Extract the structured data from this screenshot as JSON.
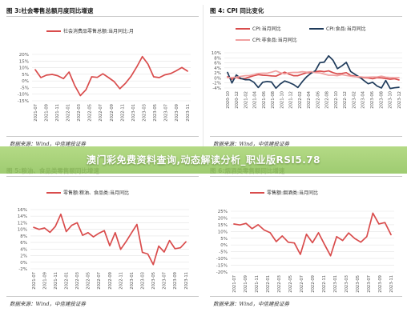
{
  "banner": {
    "text": "澳门彩免费资料查询,动态解读分析_职业版RSI5.78"
  },
  "colors": {
    "red": "#d94c4c",
    "navy": "#1f3b5b",
    "pink": "#f0a0a0",
    "grid": "#e4e4e4",
    "banner": "#9cc969"
  },
  "panels": [
    {
      "title": "图 3:社会零售总额月度同比增速",
      "source": "数据来源：Wind，中信建投证券"
    },
    {
      "title": "图 4: CPI 同比变化",
      "source": "数据来源：Wind，中信建投证券"
    },
    {
      "title": "图 5:粮油、食品类零售额同比增速",
      "source": "数据来源：Wind，中信建投证券"
    },
    {
      "title": "图 6:烟酒类零售额同比增速",
      "source": "数据来源：Wind，中信建投证券"
    }
  ],
  "chart_data": [
    {
      "type": "line",
      "ylim": [
        -15,
        20
      ],
      "yticks": [
        "20%",
        "15%",
        "10%",
        "5%",
        "0%",
        "-5%",
        "-10%",
        "-15%"
      ],
      "xticks": [
        "2021-07",
        "2021-09",
        "2021-11",
        "2022-01",
        "2022-03",
        "2022-05",
        "2022-07",
        "2022-09",
        "2022-11",
        "2023-01",
        "2023-03",
        "2023-05",
        "2023-07",
        "2023-09",
        "2023-11"
      ],
      "series": [
        {
          "name": "社会消费品零售总额:当月同比:月",
          "color": "#d94c4c",
          "values": [
            8.5,
            2.5,
            4.4,
            4.9,
            3.9,
            1.7,
            6.7,
            -3.5,
            -11.1,
            -6.7,
            3.1,
            2.7,
            5.4,
            2.5,
            -0.5,
            -5.9,
            -1.8,
            3.5,
            10.6,
            18.4,
            12.7,
            3.1,
            2.5,
            4.6,
            5.5,
            7.6,
            10.1,
            7.4
          ]
        }
      ]
    },
    {
      "type": "line",
      "ylim": [
        -4,
        10
      ],
      "yticks": [
        "10%",
        "8%",
        "6%",
        "4%",
        "2%",
        "0%",
        "-2%",
        "-4%"
      ],
      "xticks": [
        "2020-10",
        "2020-12",
        "2021-02",
        "2021-04",
        "2021-06",
        "2021-08",
        "2021-10",
        "2021-12",
        "2022-02",
        "2022-04",
        "2022-06",
        "2022-08",
        "2022-10",
        "2022-12",
        "2023-02",
        "2023-04",
        "2023-06",
        "2023-08",
        "2023-10",
        "2023-12"
      ],
      "series": [
        {
          "name": "CPI:当月同比",
          "color": "#d94c4c",
          "values": [
            0.5,
            -0.5,
            0.2,
            -0.3,
            -0.2,
            0.4,
            0.9,
            1.3,
            1.1,
            1.0,
            0.8,
            0.7,
            1.5,
            2.3,
            1.5,
            0.9,
            0.9,
            1.5,
            2.1,
            2.1,
            2.5,
            2.7,
            2.5,
            2.8,
            2.1,
            1.6,
            1.8,
            2.1,
            1.0,
            0.7,
            0.2,
            0.1,
            0.0,
            -0.3,
            0.1,
            0.0,
            -0.2,
            -0.5,
            -0.3,
            -0.8
          ]
        },
        {
          "name": "CPI:食品:当月同比",
          "color": "#1f3b5b",
          "values": [
            2.2,
            -2.0,
            1.2,
            -0.2,
            -0.7,
            -0.7,
            -1.7,
            -3.8,
            -1.7,
            -1.4,
            -1.6,
            -4.1,
            -2.4,
            -1.2,
            -1.8,
            -2.6,
            -3.8,
            -1.5,
            0.5,
            1.9,
            2.9,
            6.1,
            6.3,
            8.8,
            7.0,
            3.7,
            4.8,
            6.2,
            2.6,
            1.4,
            0.4,
            -1.0,
            -2.3,
            -1.7,
            -3.2,
            -4.0,
            -1.0,
            -4.2,
            -3.9,
            -3.7
          ]
        },
        {
          "name": "CPI:非食品:当月同比",
          "color": "#f0a0a0",
          "values": [
            0.1,
            0.2,
            0.3,
            0.6,
            0.9,
            1.0,
            1.3,
            1.8,
            1.9,
            1.9,
            2.3,
            2.8,
            2.1,
            1.6,
            2.1,
            2.2,
            2.2,
            2.5,
            2.3,
            2.5,
            2.1,
            2.0,
            1.5,
            1.1,
            1.1,
            0.9,
            1.3,
            1.0,
            0.7,
            0.5,
            0.5,
            0.3,
            0.3,
            0.4,
            0.4,
            0.7,
            0.3,
            0.2,
            0.1,
            0.1
          ]
        }
      ]
    },
    {
      "type": "line",
      "ylim": [
        -2,
        16
      ],
      "yticks": [
        "16%",
        "14%",
        "12%",
        "10%",
        "8%",
        "6%",
        "4%",
        "2%",
        "0%",
        "-2%"
      ],
      "xticks": [
        "2021-07",
        "2021-09",
        "2021-11",
        "2022-01",
        "2022-03",
        "2022-05",
        "2022-07",
        "2022-09",
        "2022-11",
        "2023-01",
        "2023-03",
        "2023-05",
        "2023-07",
        "2023-09",
        "2023-11"
      ],
      "series": [
        {
          "name": "零售额:粮油、食品类:当月同比",
          "color": "#d94c4c",
          "values": [
            10.6,
            10.0,
            10.4,
            9.1,
            10.9,
            14.6,
            9.3,
            11.2,
            12.0,
            8.2,
            9.0,
            7.7,
            8.8,
            9.6,
            5.0,
            9.0,
            3.9,
            6.3,
            8.9,
            11.5,
            3.0,
            2.5,
            -0.7,
            4.9,
            3.1,
            6.6,
            4.1,
            4.4,
            6.2
          ]
        }
      ]
    },
    {
      "type": "line",
      "ylim": [
        -20,
        25
      ],
      "yticks": [
        "25%",
        "20%",
        "15%",
        "10%",
        "5%",
        "0%",
        "-5%",
        "-10%",
        "-15%",
        "-20%"
      ],
      "xticks": [
        "2021-07",
        "2021-09",
        "2021-11",
        "2022-01",
        "2022-03",
        "2022-05",
        "2022-07",
        "2022-09",
        "2022-11",
        "2023-01",
        "2023-03",
        "2023-05",
        "2023-07",
        "2023-09",
        "2023-11"
      ],
      "series": [
        {
          "name": "零售额:烟酒类:当月同比",
          "color": "#d94c4c",
          "values": [
            15.5,
            14.8,
            16.0,
            12.1,
            15.0,
            11.1,
            9.1,
            2.5,
            6.7,
            2.0,
            1.5,
            -7.0,
            8.0,
            1.7,
            9.1,
            0.3,
            -8.0,
            6.2,
            3.3,
            8.9,
            4.8,
            2.1,
            6.2,
            23.6,
            15.6,
            16.6,
            7.6
          ]
        }
      ]
    }
  ]
}
